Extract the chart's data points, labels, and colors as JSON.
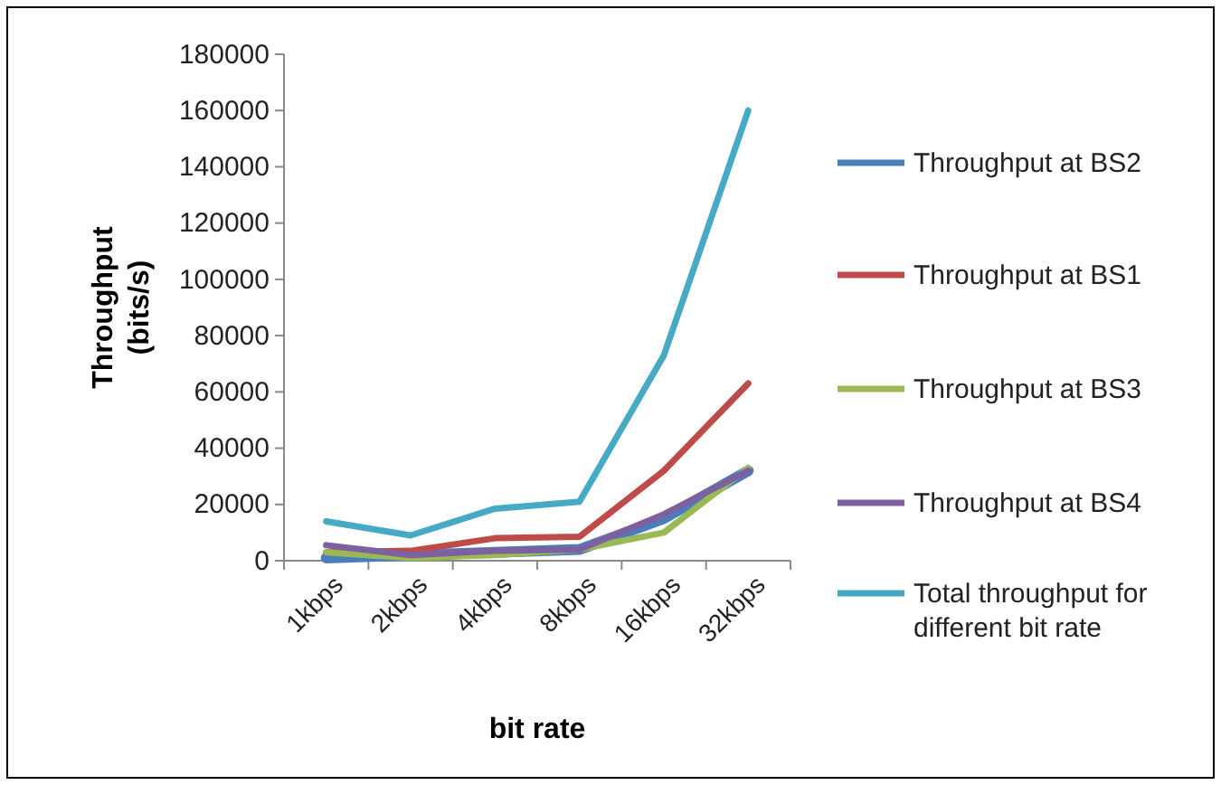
{
  "chart_data": {
    "type": "line",
    "xlabel": "bit rate",
    "ylabel": "Throughput (bits/s)",
    "categories": [
      "1kbps",
      "2kbps",
      "4kbps",
      "8kbps",
      "16kbps",
      "32kbps"
    ],
    "series": [
      {
        "name": "Throughput at BS2",
        "color": "#4a7ebb",
        "values": [
          1000,
          2000,
          3000,
          4000,
          15000,
          32000
        ]
      },
      {
        "name": "Throughput at BS1",
        "color": "#be4b48",
        "values": [
          3000,
          3500,
          8000,
          8500,
          32000,
          63000
        ]
      },
      {
        "name": "Throughput at BS3",
        "color": "#98b954",
        "values": [
          3000,
          1000,
          2000,
          4000,
          10000,
          33000
        ]
      },
      {
        "name": "Throughput at BS4",
        "color": "#7d60a0",
        "values": [
          5500,
          2000,
          3500,
          4000,
          16500,
          32000
        ]
      },
      {
        "name": "Total throughput for different bit rate",
        "color": "#46aac5",
        "values": [
          14000,
          9000,
          18500,
          21000,
          73000,
          160000
        ]
      }
    ],
    "ylim": [
      0,
      180000
    ],
    "yticks": [
      0,
      20000,
      40000,
      60000,
      80000,
      100000,
      120000,
      140000,
      160000,
      180000
    ],
    "legend": "right",
    "marker": "none",
    "line_style": "solid",
    "grid": false
  }
}
